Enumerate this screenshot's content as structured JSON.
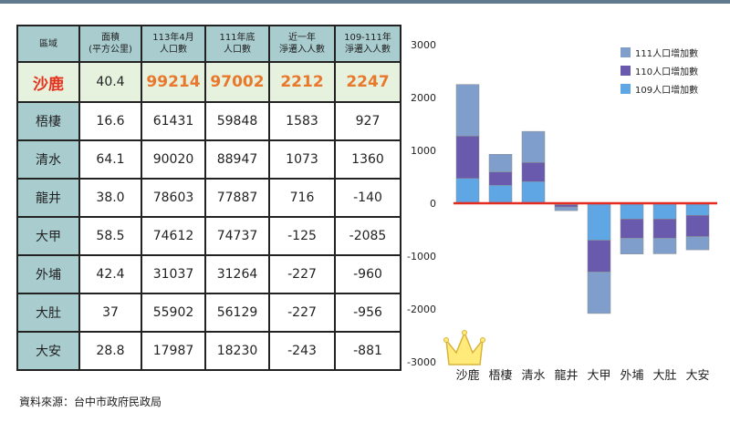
{
  "table": {
    "headers": [
      [
        "區域"
      ],
      [
        "面積",
        "(平方公里)"
      ],
      [
        "113年4月",
        "人口數"
      ],
      [
        "111年底",
        "人口數"
      ],
      [
        "近一年",
        "淨遷入人數"
      ],
      [
        "109-111年",
        "淨遷入人數"
      ]
    ],
    "rows": [
      [
        "沙鹿",
        "40.4",
        "99214",
        "97002",
        "2212",
        "2247"
      ],
      [
        "梧棲",
        "16.6",
        "61431",
        "59848",
        "1583",
        "927"
      ],
      [
        "清水",
        "64.1",
        "90020",
        "88947",
        "1073",
        "1360"
      ],
      [
        "龍井",
        "38.0",
        "78603",
        "77887",
        "716",
        "-140"
      ],
      [
        "大甲",
        "58.5",
        "74612",
        "74737",
        "-125",
        "-2085"
      ],
      [
        "外埔",
        "42.4",
        "31037",
        "31264",
        "-227",
        "-960"
      ],
      [
        "大肚",
        "37",
        "55902",
        "56129",
        "-227",
        "-956"
      ],
      [
        "大安",
        "28.8",
        "17987",
        "18230",
        "-243",
        "-881"
      ]
    ]
  },
  "source": "資料來源：台中市政府民政局",
  "chart_data": {
    "type": "bar",
    "stacked": true,
    "categories": [
      "沙鹿",
      "梧棲",
      "清水",
      "龍井",
      "大甲",
      "外埔",
      "大肚",
      "大安"
    ],
    "series": [
      {
        "name": "109人口增加數",
        "color": "#5ea7e4",
        "values": [
          470,
          340,
          410,
          -30,
          -700,
          -300,
          -300,
          -230
        ]
      },
      {
        "name": "110人口增加數",
        "color": "#6a5aae",
        "values": [
          800,
          250,
          360,
          -40,
          -600,
          -360,
          -360,
          -400
        ]
      },
      {
        "name": "111人口增加數",
        "color": "#7f9ecb",
        "values": [
          977,
          337,
          590,
          -70,
          -785,
          -300,
          -296,
          -251
        ]
      }
    ],
    "legend_order": [
      "111人口增加數",
      "110人口增加數",
      "109人口增加數"
    ],
    "ylim": [
      -3000,
      3000
    ],
    "yticks": [
      -3000,
      -2000,
      -1000,
      0,
      1000,
      2000,
      3000
    ],
    "zero_line_color": "#e32b1f",
    "grid": false,
    "legend_position": "top-right"
  }
}
